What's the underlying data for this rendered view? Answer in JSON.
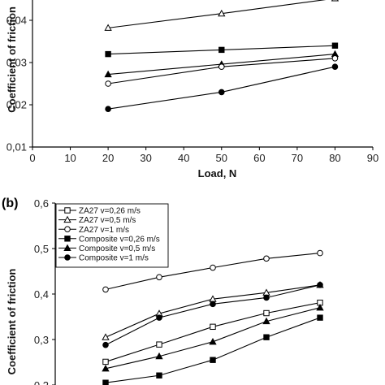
{
  "chart_data": [
    {
      "panel": "(a)",
      "type": "line",
      "xlabel": "Load, N",
      "ylabel": "Coefficient of friction",
      "xlim": [
        0,
        90
      ],
      "ylim": [
        0.01,
        0.045
      ],
      "xticks": [
        "0",
        "10",
        "20",
        "30",
        "40",
        "50",
        "60",
        "70",
        "80",
        "90"
      ],
      "yticks": [
        "0,01",
        "0,02",
        "0,03",
        "0,04"
      ],
      "grid": false,
      "x": [
        20,
        50,
        80
      ],
      "series": [
        {
          "marker": "triangle-open",
          "values": [
            0.0382,
            0.0416,
            0.0452
          ]
        },
        {
          "marker": "square-filled",
          "values": [
            0.032,
            0.033,
            0.034
          ]
        },
        {
          "marker": "triangle-filled",
          "values": [
            0.0272,
            0.0296,
            0.032
          ]
        },
        {
          "marker": "circle-open",
          "values": [
            0.025,
            0.029,
            0.031
          ]
        },
        {
          "marker": "circle-filled",
          "values": [
            0.019,
            0.023,
            0.029
          ]
        }
      ]
    },
    {
      "panel": "(b)",
      "type": "line",
      "ylabel": "Coefficient of friction",
      "ylim": [
        0.2,
        0.6
      ],
      "yticks": [
        "0,2",
        "0,3",
        "0,4",
        "0,5",
        "0,6"
      ],
      "grid": false,
      "legend_position": "top-left",
      "x": [
        10,
        20,
        30,
        40,
        50
      ],
      "series": [
        {
          "name": "ZA27 v=0,26 m/s",
          "marker": "square-open",
          "values": [
            0.251,
            0.289,
            0.328,
            0.358,
            0.381
          ]
        },
        {
          "name": "ZA27 v=0,5 m/s",
          "marker": "triangle-open",
          "values": [
            0.305,
            0.357,
            0.389,
            0.403,
            0.42
          ]
        },
        {
          "name": "ZA27 v=1 m/s",
          "marker": "circle-open",
          "values": [
            0.41,
            0.437,
            0.458,
            0.478,
            0.49
          ]
        },
        {
          "name": "Composite v=0,26 m/s",
          "marker": "square-filled",
          "values": [
            0.205,
            0.221,
            0.255,
            0.305,
            0.348
          ]
        },
        {
          "name": "Composite v=0,5 m/s",
          "marker": "triangle-filled",
          "values": [
            0.236,
            0.263,
            0.295,
            0.34,
            0.37
          ]
        },
        {
          "name": "Composite v=1 m/s",
          "marker": "circle-filled",
          "values": [
            0.288,
            0.348,
            0.378,
            0.392,
            0.42
          ]
        }
      ]
    }
  ]
}
